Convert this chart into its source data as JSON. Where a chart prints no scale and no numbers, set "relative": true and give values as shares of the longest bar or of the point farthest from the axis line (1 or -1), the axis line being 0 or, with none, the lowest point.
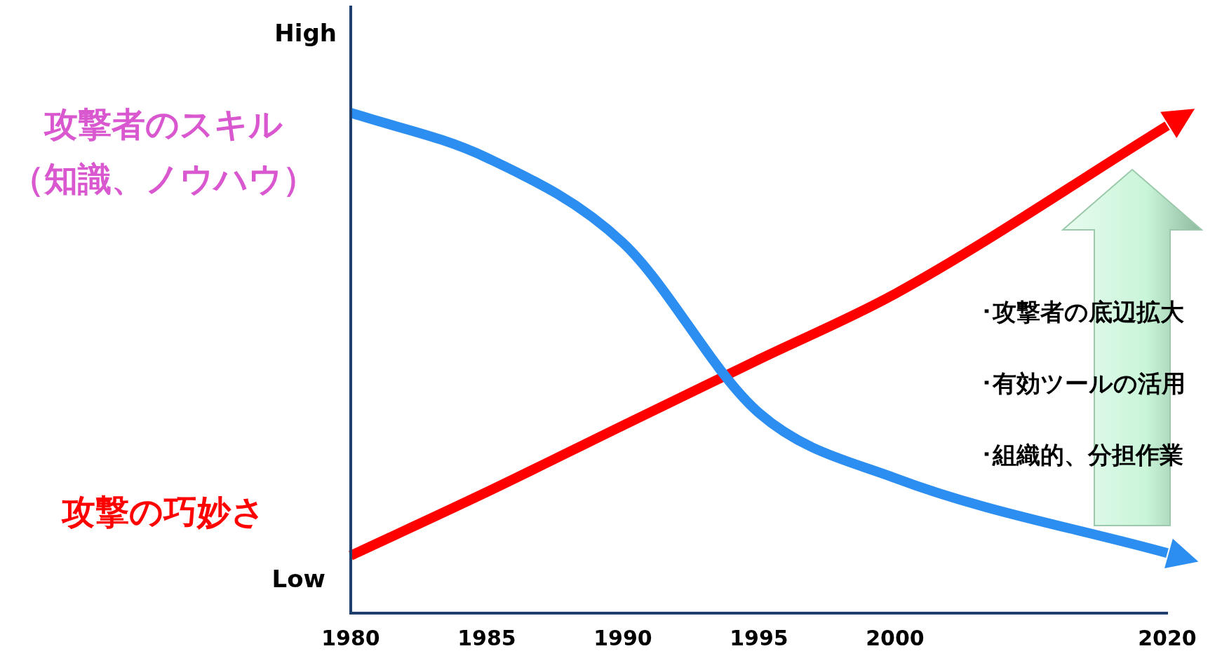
{
  "chart_data": {
    "type": "line",
    "relative": true,
    "categories": [
      "1980",
      "1985",
      "1990",
      "1995",
      "2000",
      null,
      "2020"
    ],
    "series": [
      {
        "name": "攻撃者のスキル（知識、ノウハウ）",
        "color": "#2b8ef0",
        "values": [
          1.0,
          0.91,
          0.74,
          0.4,
          0.27,
          null,
          0.12
        ]
      },
      {
        "name": "攻撃の巧妙さ",
        "color": "#ff0000",
        "values": [
          0.115,
          0.242,
          0.375,
          0.507,
          0.638,
          null,
          0.974
        ]
      }
    ],
    "annotations": [
      "High",
      "Low",
      "･攻撃者の底辺拡大",
      "･有効ツールの活用",
      "･組織的、分担作業"
    ],
    "grid": false,
    "legend": false,
    "marker": "none",
    "line_style": "solid"
  }
}
